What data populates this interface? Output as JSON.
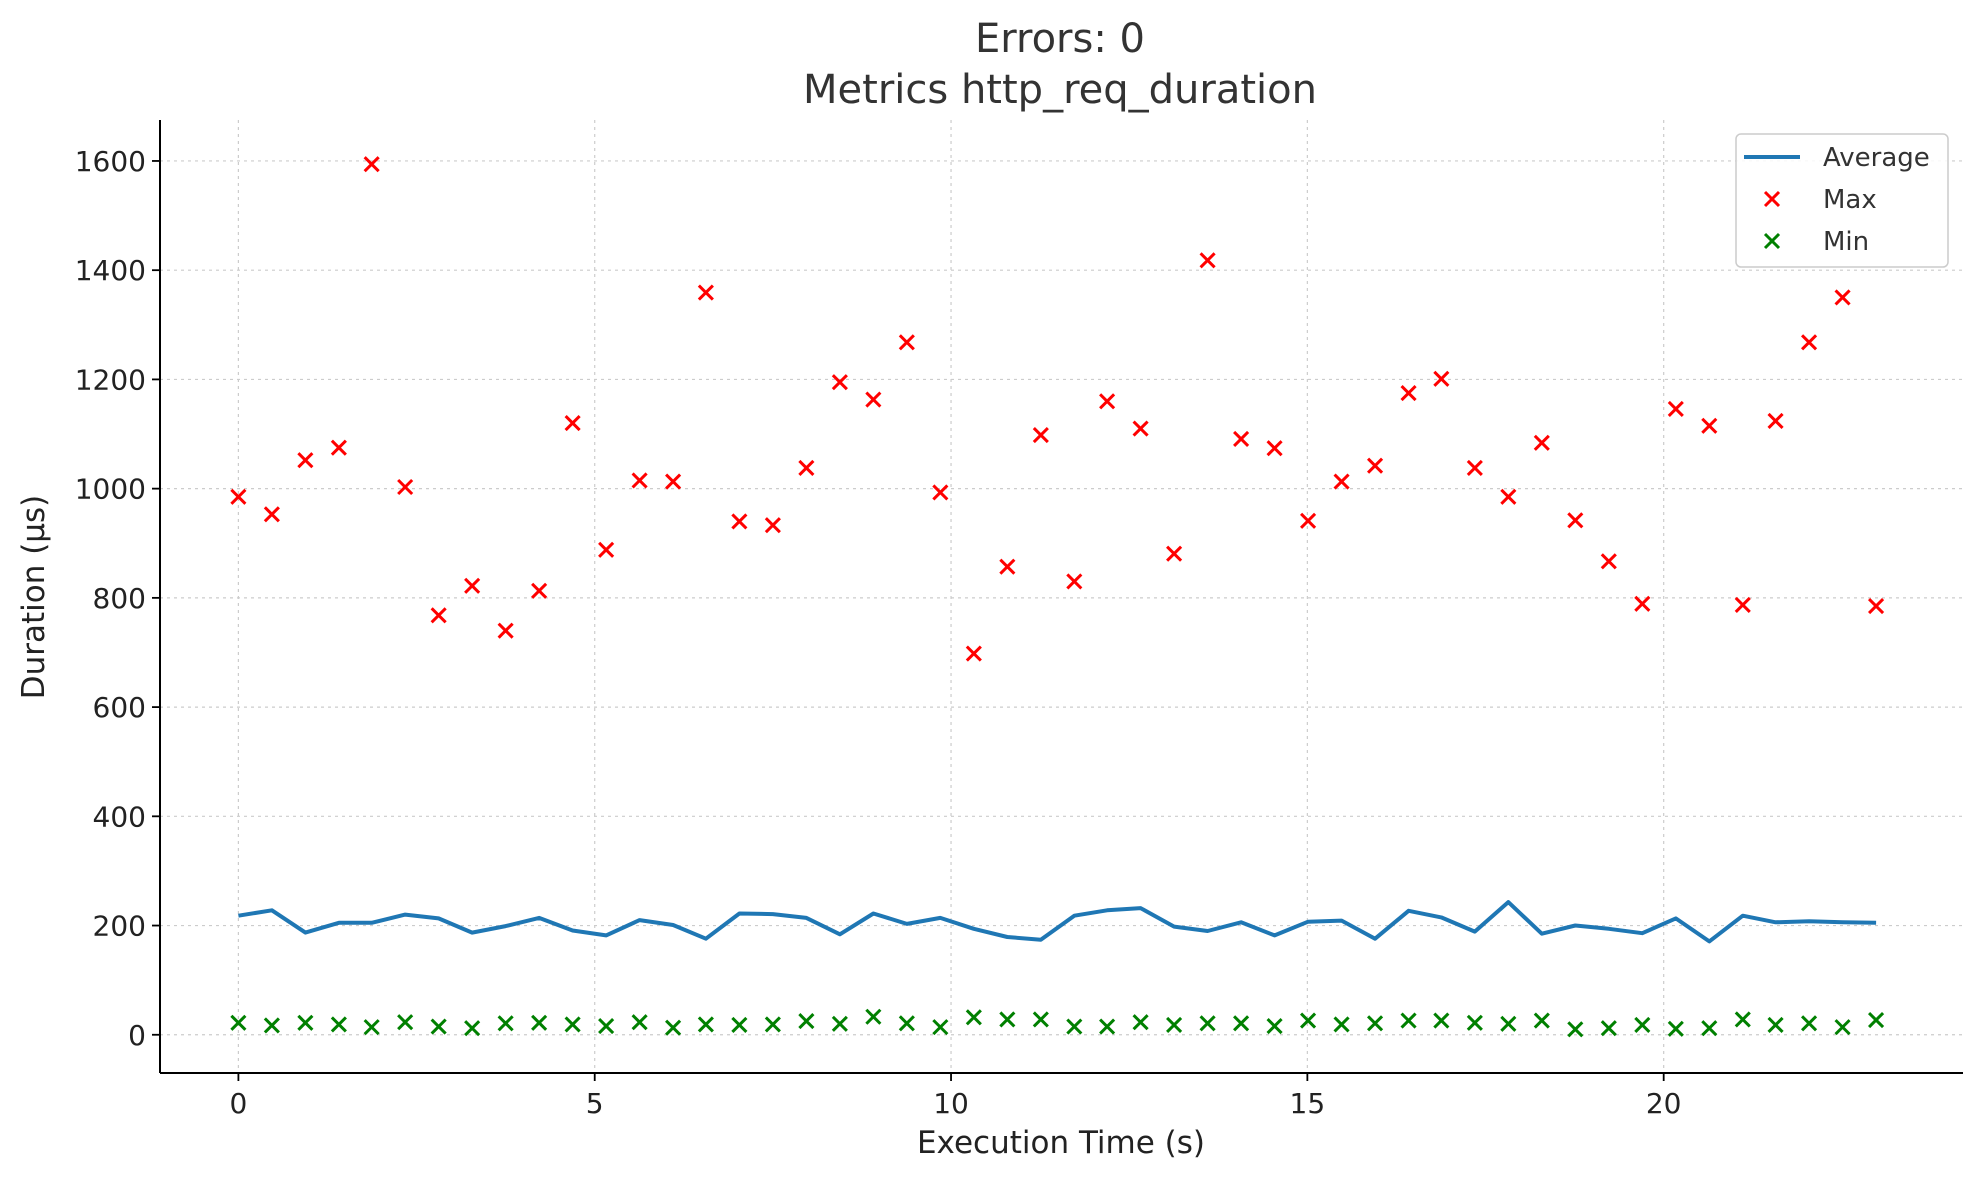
{
  "chart_data": {
    "type": "line",
    "title_lines": [
      "Errors: 0",
      "Metrics http_req_duration"
    ],
    "xlabel": "Execution Time (s)",
    "ylabel": "Duration (µs)",
    "xlim": [
      -1.1,
      24.2
    ],
    "ylim": [
      -70,
      1675
    ],
    "xticks": [
      0,
      5,
      10,
      15,
      20
    ],
    "xtick_labels": [
      "0",
      "5",
      "10",
      "15",
      "20"
    ],
    "yticks": [
      0,
      200,
      400,
      600,
      800,
      1000,
      1200,
      1400,
      1600
    ],
    "ytick_labels": [
      "0",
      "200",
      "400",
      "600",
      "800",
      "1000",
      "1200",
      "1400",
      "1600"
    ],
    "grid": true,
    "legend_position": "top-right",
    "x": [
      0,
      0.47,
      0.94,
      1.41,
      1.87,
      2.34,
      2.81,
      3.28,
      3.75,
      4.22,
      4.69,
      5.16,
      5.63,
      6.1,
      6.56,
      7.03,
      7.5,
      7.97,
      8.44,
      8.91,
      9.38,
      9.85,
      10.32,
      10.79,
      11.26,
      11.73,
      12.19,
      12.66,
      13.13,
      13.6,
      14.07,
      14.54,
      15.01,
      15.48,
      15.95,
      16.42,
      16.88,
      17.35,
      17.82,
      18.29,
      18.76,
      19.23,
      19.7,
      20.17,
      20.64,
      21.11,
      21.57,
      22.04,
      22.51,
      22.98
    ],
    "series": [
      {
        "name": "Average",
        "kind": "line",
        "color": "#1f77b4",
        "values": [
          218,
          228,
          187,
          205,
          205,
          220,
          213,
          187,
          199,
          214,
          191,
          182,
          210,
          201,
          176,
          222,
          221,
          214,
          184,
          222,
          203,
          214,
          194,
          179,
          174,
          218,
          228,
          232,
          198,
          190,
          206,
          182,
          207,
          209,
          176,
          227,
          215,
          189,
          243,
          185,
          200,
          194,
          186,
          213,
          171,
          218,
          206,
          208,
          206,
          205
        ]
      },
      {
        "name": "Max",
        "kind": "scatter",
        "marker": "x",
        "color": "#ff0000",
        "values": [
          985,
          953,
          1052,
          1075,
          1594,
          1003,
          768,
          822,
          740,
          813,
          1120,
          888,
          1015,
          1013,
          1359,
          940,
          933,
          1038,
          1195,
          1163,
          1268,
          993,
          698,
          857,
          1098,
          830,
          1160,
          1110,
          881,
          1418,
          1091,
          1074,
          941,
          1013,
          1042,
          1175,
          1201,
          1038,
          985,
          1084,
          942,
          867,
          789,
          1146,
          1115,
          787,
          1124,
          1268,
          1350,
          785
        ]
      },
      {
        "name": "Min",
        "kind": "scatter",
        "marker": "x",
        "color": "#008000",
        "values": [
          22,
          17,
          22,
          19,
          14,
          23,
          15,
          12,
          21,
          22,
          19,
          16,
          23,
          13,
          19,
          18,
          19,
          25,
          20,
          33,
          21,
          14,
          32,
          28,
          28,
          15,
          15,
          23,
          18,
          21,
          21,
          16,
          26,
          19,
          21,
          26,
          26,
          22,
          20,
          26,
          10,
          12,
          18,
          11,
          12,
          28,
          18,
          21,
          14,
          27
        ]
      }
    ]
  }
}
